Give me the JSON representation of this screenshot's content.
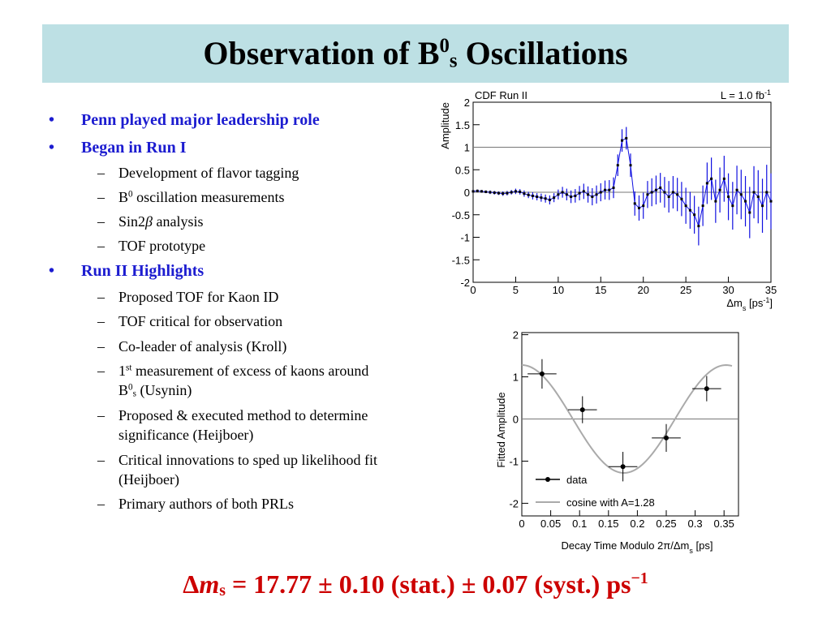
{
  "title": [
    "Observation of B",
    {
      "sup": "0"
    },
    {
      "sub": "s"
    },
    " Oscillations"
  ],
  "bullets": [
    {
      "level": 1,
      "parts": [
        "Penn played major leadership role"
      ]
    },
    {
      "level": 1,
      "parts": [
        "Began in Run I"
      ]
    },
    {
      "level": 2,
      "parts": [
        "Development of flavor tagging"
      ]
    },
    {
      "level": 2,
      "parts": [
        "B",
        {
          "sup": "0"
        },
        " oscillation measurements"
      ]
    },
    {
      "level": 2,
      "parts": [
        "Sin2",
        {
          "i": "β"
        },
        " analysis"
      ]
    },
    {
      "level": 2,
      "parts": [
        "TOF prototype"
      ]
    },
    {
      "level": 1,
      "parts": [
        "Run II Highlights"
      ]
    },
    {
      "level": 2,
      "parts": [
        "Proposed TOF for Kaon ID"
      ]
    },
    {
      "level": 2,
      "parts": [
        "TOF critical for observation"
      ]
    },
    {
      "level": 2,
      "parts": [
        "Co-leader of analysis (Kroll)"
      ]
    },
    {
      "level": 2,
      "parts": [
        "1",
        {
          "sup": "st"
        },
        " measurement of excess of kaons around B",
        {
          "sup": "0"
        },
        {
          "sub": "s"
        },
        " (Usynin)"
      ]
    },
    {
      "level": 2,
      "parts": [
        "Proposed & executed method to determine significance  (Heijboer)"
      ]
    },
    {
      "level": 2,
      "parts": [
        "Critical innovations to sped up likelihood fit (Heijboer)"
      ]
    },
    {
      "level": 2,
      "parts": [
        "Primary authors of both PRLs"
      ]
    }
  ],
  "chart_data": [
    {
      "type": "scatter",
      "label_left": "CDF Run II",
      "label_right": [
        "L = 1.0 fb",
        {
          "sup": "-1"
        }
      ],
      "y_label": "Amplitude",
      "x_label": [
        "Δm",
        {
          "sub": "s"
        },
        " [ps",
        {
          "sup": "-1"
        },
        "]"
      ],
      "x": [
        0,
        0.5,
        1,
        1.5,
        2,
        2.5,
        3,
        3.5,
        4,
        4.5,
        5,
        5.5,
        6,
        6.5,
        7,
        7.5,
        8,
        8.5,
        9,
        9.5,
        10,
        10.5,
        11,
        11.5,
        12,
        12.5,
        13,
        13.5,
        14,
        14.5,
        15,
        15.5,
        16,
        16.5,
        17,
        17.5,
        18,
        18.5,
        19,
        19.5,
        20,
        20.5,
        21,
        21.5,
        22,
        22.5,
        23,
        23.5,
        24,
        24.5,
        25,
        25.5,
        26,
        26.5,
        27,
        27.5,
        28,
        28.5,
        29,
        29.5,
        30,
        30.5,
        31,
        31.5,
        32,
        32.5,
        33,
        33.5,
        34,
        34.5,
        35
      ],
      "values": [
        0.02,
        0.03,
        0.02,
        0.01,
        0.0,
        -0.01,
        -0.02,
        -0.03,
        -0.02,
        0.0,
        0.02,
        0.01,
        -0.03,
        -0.06,
        -0.08,
        -0.1,
        -0.12,
        -0.14,
        -0.17,
        -0.12,
        -0.05,
        0.0,
        -0.05,
        -0.1,
        -0.08,
        -0.02,
        0.02,
        -0.05,
        -0.1,
        -0.05,
        0.0,
        0.05,
        0.05,
        0.1,
        0.6,
        1.15,
        1.2,
        0.6,
        -0.25,
        -0.35,
        -0.3,
        -0.05,
        0.0,
        0.05,
        0.1,
        0.0,
        -0.1,
        0.0,
        -0.05,
        -0.15,
        -0.3,
        -0.4,
        -0.5,
        -0.75,
        -0.3,
        0.2,
        0.3,
        -0.2,
        0.05,
        0.3,
        -0.1,
        -0.3,
        0.05,
        -0.05,
        -0.2,
        -0.45,
        0.0,
        -0.1,
        -0.3,
        0.0,
        -0.2
      ],
      "errors": [
        0.03,
        0.03,
        0.03,
        0.03,
        0.04,
        0.04,
        0.04,
        0.05,
        0.05,
        0.05,
        0.06,
        0.06,
        0.07,
        0.07,
        0.08,
        0.08,
        0.09,
        0.09,
        0.1,
        0.1,
        0.11,
        0.12,
        0.13,
        0.14,
        0.15,
        0.16,
        0.17,
        0.18,
        0.19,
        0.2,
        0.2,
        0.21,
        0.22,
        0.23,
        0.24,
        0.25,
        0.25,
        0.26,
        0.27,
        0.28,
        0.29,
        0.3,
        0.31,
        0.32,
        0.33,
        0.34,
        0.35,
        0.36,
        0.37,
        0.38,
        0.4,
        0.41,
        0.42,
        0.43,
        0.45,
        0.46,
        0.47,
        0.48,
        0.5,
        0.51,
        0.52,
        0.53,
        0.54,
        0.55,
        0.56,
        0.57,
        0.58,
        0.59,
        0.6,
        0.61,
        0.62
      ],
      "hlines": [
        0,
        1
      ],
      "xlim": [
        0,
        35
      ],
      "ylim": [
        -2,
        2
      ],
      "xticks": [
        0,
        5,
        10,
        15,
        20,
        25,
        30,
        35
      ],
      "yticks": [
        -2,
        -1.5,
        -1,
        -0.5,
        0,
        0.5,
        1,
        1.5,
        2
      ],
      "marker_color": "#000000",
      "error_color": "#1010e0"
    },
    {
      "type": "errorbar",
      "y_label": "Fitted Amplitude",
      "x_label": [
        "Decay Time Modulo 2π/Δm",
        {
          "sub": "s"
        },
        " [ps]"
      ],
      "series": [
        {
          "name": "data",
          "color": "#000000",
          "x": [
            0.035,
            0.105,
            0.175,
            0.25,
            0.32
          ],
          "values": [
            1.07,
            0.22,
            -1.13,
            -0.45,
            0.72
          ],
          "xerr": [
            0.025,
            0.025,
            0.025,
            0.025,
            0.025
          ],
          "yerr": [
            0.35,
            0.32,
            0.35,
            0.33,
            0.3
          ]
        }
      ],
      "curve": {
        "name": "cosine with A=",
        "amplitude": 1.28,
        "color": "#aaaaaa"
      },
      "hlines": [
        0
      ],
      "xlim": [
        0,
        0.375
      ],
      "ylim": [
        -2.3,
        2.05
      ],
      "xticks": [
        0,
        0.05,
        0.1,
        0.15,
        0.2,
        0.25,
        0.3,
        0.35
      ],
      "yticks": [
        -2,
        -1,
        0,
        1,
        2
      ],
      "legend": "lower-left"
    }
  ],
  "formula": {
    "lhs": [
      "Δ",
      {
        "i": "m"
      },
      {
        "sub": "s"
      }
    ],
    "eq": " = ",
    "value": 17.77,
    "pm1": " ± ",
    "stat": 0.1,
    "stat_label": " (stat.)",
    "pm2": " ± ",
    "syst": 0.07,
    "syst_label": " (syst.)",
    "unit": [
      " ps",
      {
        "sup": "−1"
      }
    ],
    "color": "#cc0000"
  }
}
